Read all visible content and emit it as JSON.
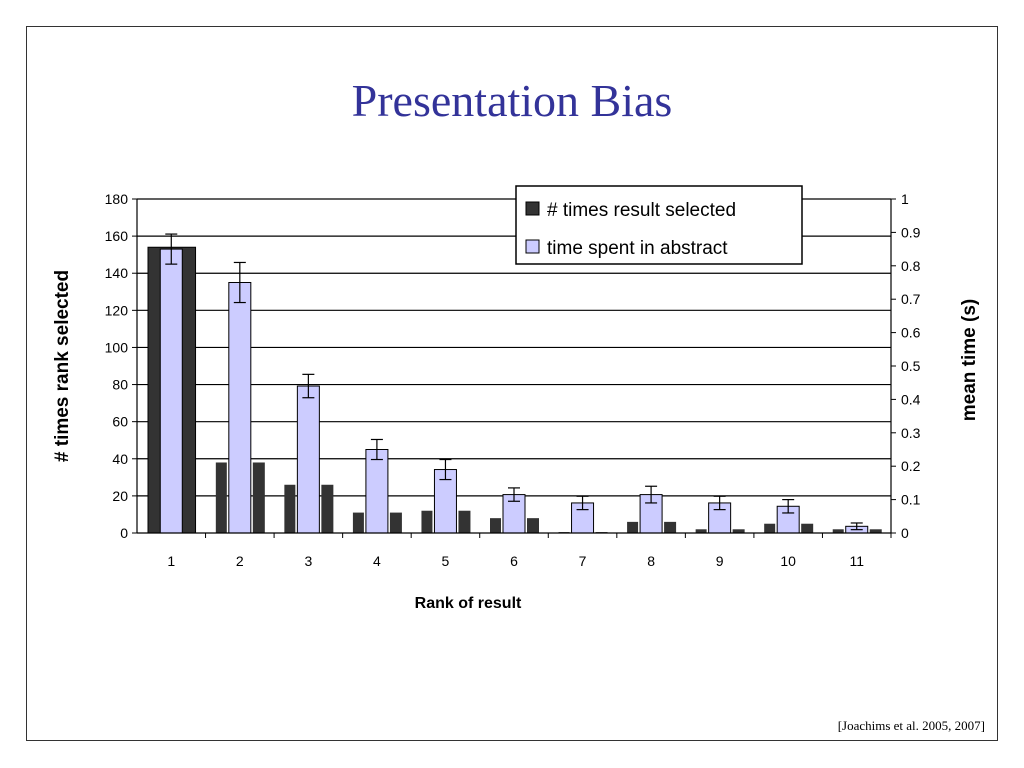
{
  "slide": {
    "title": "Presentation Bias",
    "citation": "[Joachims et al. 2005, 2007]"
  },
  "chart_data": {
    "type": "bar",
    "categories": [
      "1",
      "2",
      "3",
      "4",
      "5",
      "6",
      "7",
      "8",
      "9",
      "10",
      "11"
    ],
    "xlabel": "Rank of result",
    "ylabel": "# times rank selected",
    "ylabel_right": "mean time (s)",
    "ylim": [
      0,
      180
    ],
    "ylim_right": [
      0,
      1
    ],
    "yticks": [
      "0",
      "20",
      "40",
      "60",
      "80",
      "100",
      "120",
      "140",
      "160",
      "180"
    ],
    "yticks_right": [
      "0",
      "0.1",
      "0.2",
      "0.3",
      "0.4",
      "0.5",
      "0.6",
      "0.7",
      "0.8",
      "0.9",
      "1"
    ],
    "grid": true,
    "legend_position": "top-right",
    "series": [
      {
        "name": "# times result selected",
        "axis": "left",
        "color": "#333333",
        "values": [
          154,
          38,
          26,
          11,
          12,
          8,
          0.5,
          6,
          2,
          5,
          2
        ]
      },
      {
        "name": "time spent in abstract",
        "axis": "right",
        "color": "#ccccff",
        "values": [
          0.85,
          0.75,
          0.44,
          0.25,
          0.19,
          0.115,
          0.09,
          0.115,
          0.09,
          0.08,
          0.02
        ],
        "error": [
          0.045,
          0.06,
          0.035,
          0.03,
          0.03,
          0.02,
          0.02,
          0.025,
          0.02,
          0.02,
          0.01
        ]
      }
    ]
  }
}
